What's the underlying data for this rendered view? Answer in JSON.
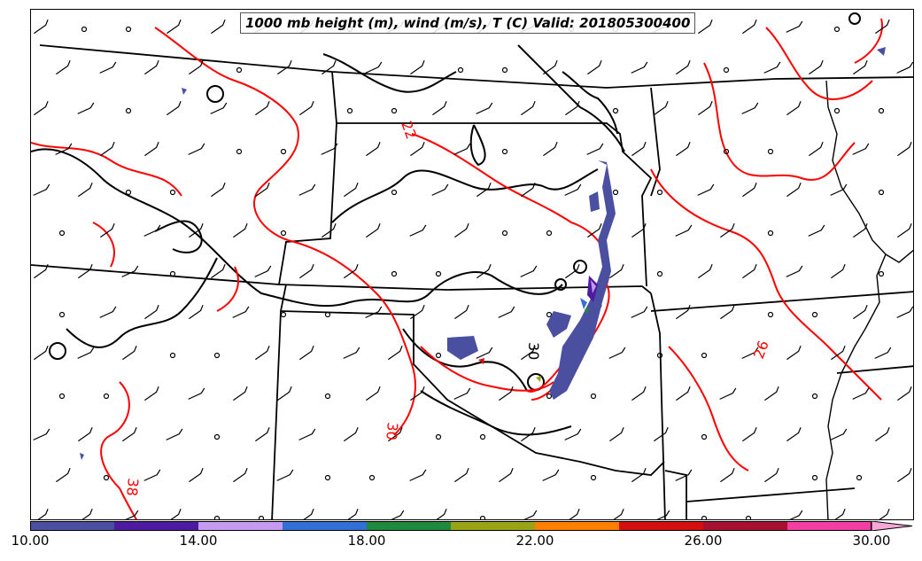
{
  "title": "1000 mb height (m), wind (m/s), T (C) Valid: 201805300400",
  "contour_labels": [
    {
      "text": "22",
      "color": "red"
    },
    {
      "text": "26",
      "color": "red"
    },
    {
      "text": "30",
      "color": "red"
    },
    {
      "text": "38",
      "color": "red"
    },
    {
      "text": "30",
      "color": "red"
    }
  ],
  "colorbar": {
    "ticks": [
      "10.00",
      "14.00",
      "18.00",
      "22.00",
      "26.00",
      "30.00"
    ],
    "min": 10,
    "max": 30,
    "colors": [
      "#4b4fa0",
      "#4d1aa0",
      "#c79af2",
      "#3370d6",
      "#1f8a3e",
      "#9aa216",
      "#ff7f00",
      "#d50e0e",
      "#a8102f",
      "#f23fa4"
    ],
    "extend_color": "#f6a7d8"
  },
  "styles": {
    "temperature_contour_color": "#ff0000",
    "height_contour_color": "#000000",
    "boundary_color": "#000000"
  }
}
